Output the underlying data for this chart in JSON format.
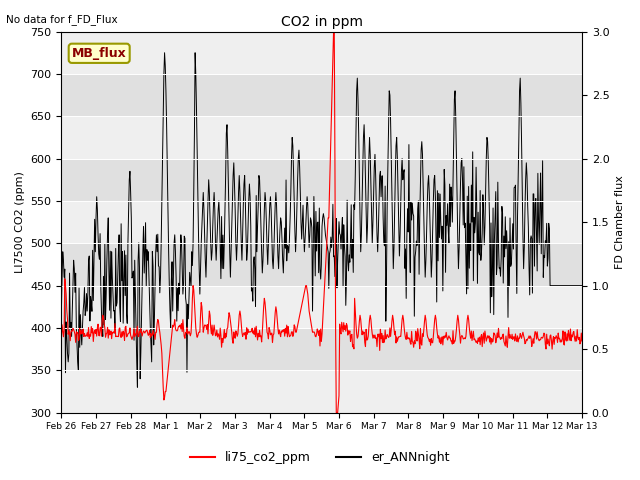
{
  "title": "CO2 in ppm",
  "ylabel_left": "LI7500 CO2 (ppm)",
  "ylabel_right": "FD Chamber flux",
  "annotation_top_left": "No data for f_FD_Flux",
  "box_label": "MB_flux",
  "ylim_left": [
    300,
    750
  ],
  "ylim_right": [
    0.0,
    3.0
  ],
  "yticks_left": [
    300,
    350,
    400,
    450,
    500,
    550,
    600,
    650,
    700,
    750
  ],
  "yticks_right": [
    0.0,
    0.5,
    1.0,
    1.5,
    2.0,
    2.5,
    3.0
  ],
  "xtick_labels": [
    "Feb 26",
    "Feb 27",
    "Feb 28",
    "Mar 1",
    "Mar 2",
    "Mar 3",
    "Mar 4",
    "Mar 5",
    "Mar 6",
    "Mar 7",
    "Mar 8",
    "Mar 9",
    "Mar 10",
    "Mar 11",
    "Mar 12",
    "Mar 13"
  ],
  "legend_labels": [
    "li75_co2_ppm",
    "er_ANNnight"
  ],
  "legend_colors": [
    "red",
    "black"
  ],
  "band_light": "#efefef",
  "band_dark": "#e0e0e0",
  "random_seed": 42
}
